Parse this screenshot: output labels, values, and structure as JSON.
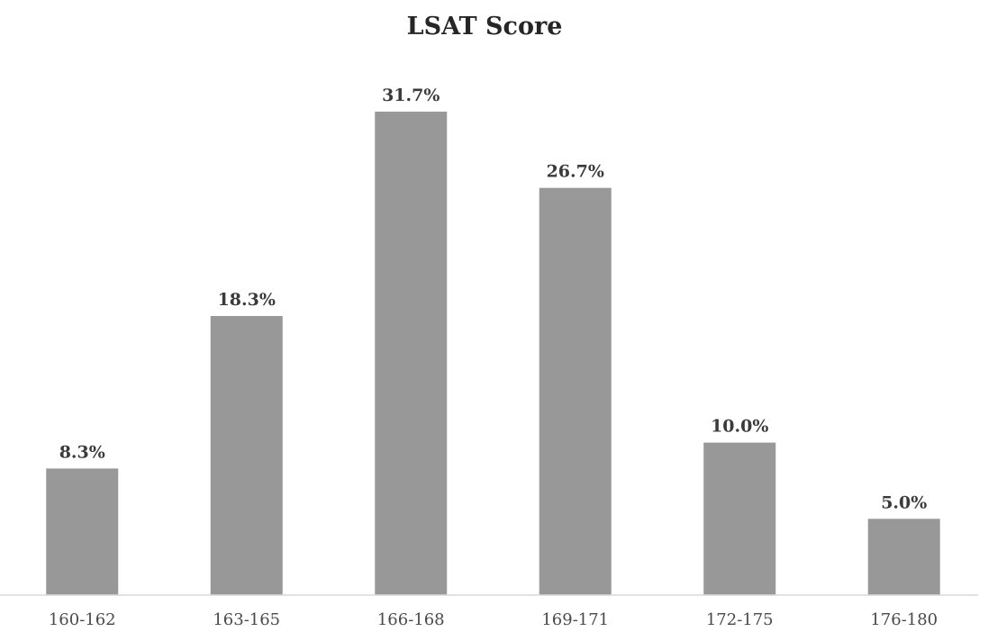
{
  "chart_data": {
    "type": "bar",
    "title": "LSAT Score",
    "xlabel": "",
    "ylabel": "",
    "categories": [
      "160-162",
      "163-165",
      "166-168",
      "169-171",
      "172-175",
      "176-180"
    ],
    "values": [
      8.3,
      18.3,
      31.7,
      26.7,
      10.0,
      5.0
    ],
    "data_labels": [
      "8.3%",
      "18.3%",
      "31.7%",
      "26.7%",
      "10.0%",
      "5.0%"
    ],
    "ylim": [
      0,
      31.7
    ],
    "grid": false,
    "legend": "none",
    "bar_color": "#989898",
    "axis_color": "#d9d9d9"
  }
}
